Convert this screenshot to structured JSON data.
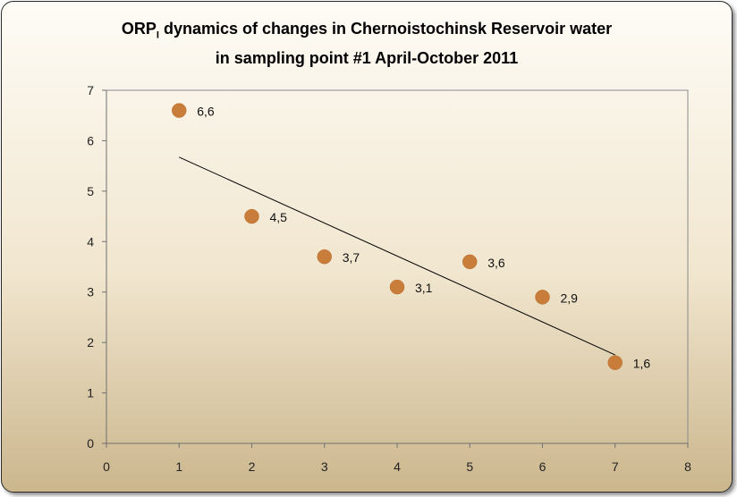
{
  "chart_data": {
    "type": "scatter",
    "title": {
      "line1_prefix": "ORP",
      "line1_sub": "I",
      "line1_rest": " dynamics  of changes in Chernoistochinsk Reservoir water",
      "line2": "in sampling  point #1 April-October  2011"
    },
    "x": [
      1,
      2,
      3,
      4,
      5,
      6,
      7
    ],
    "y": [
      6.6,
      4.5,
      3.7,
      3.1,
      3.6,
      2.9,
      1.6
    ],
    "data_labels": [
      "6,6",
      "4,5",
      "3,7",
      "3,1",
      "3,6",
      "2,9",
      "1,6"
    ],
    "trendline": {
      "type": "linear",
      "x_range": [
        1,
        7
      ]
    },
    "xlim": [
      0,
      8
    ],
    "ylim": [
      0,
      7
    ],
    "xticks": [
      0,
      1,
      2,
      3,
      4,
      5,
      6,
      7,
      8
    ],
    "yticks": [
      0,
      1,
      2,
      3,
      4,
      5,
      6,
      7
    ],
    "xlabel": "",
    "ylabel": "",
    "grid": false,
    "legend": "none",
    "marker_color": "#c87d3a",
    "trend_color": "#000000"
  }
}
